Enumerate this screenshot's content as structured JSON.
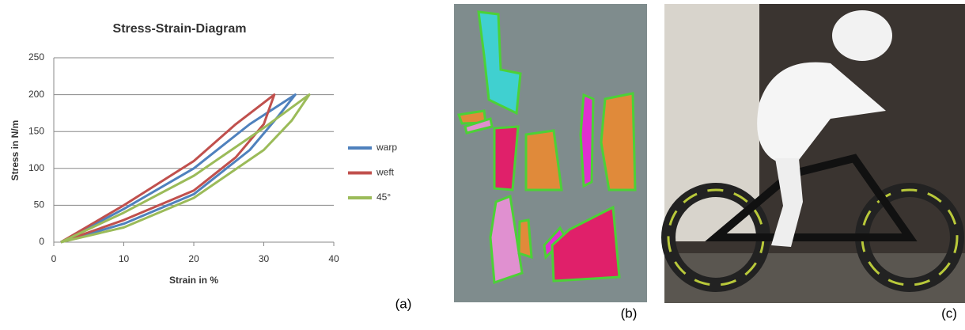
{
  "chart_data": {
    "type": "line",
    "title": "Stress-Strain-Diagram",
    "x_label": "Strain in %",
    "y_label": "Stress in N/m",
    "xlim": [
      0,
      40
    ],
    "xticks": [
      0,
      10,
      20,
      30,
      40
    ],
    "ylim": [
      0,
      250
    ],
    "yticks": [
      0,
      50,
      100,
      150,
      200,
      250
    ],
    "grid": true,
    "legend": "right",
    "series": [
      {
        "name": "warp",
        "color": "#4f81bd",
        "x": [
          1,
          10,
          20,
          28,
          34.5,
          32,
          28,
          20,
          10,
          1
        ],
        "values": [
          0,
          45,
          100,
          160,
          200,
          170,
          125,
          65,
          25,
          0
        ]
      },
      {
        "name": "weft",
        "color": "#c0504d",
        "x": [
          1,
          10,
          20,
          26,
          31.5,
          30,
          26,
          20,
          10,
          1
        ],
        "values": [
          0,
          50,
          110,
          160,
          200,
          160,
          115,
          70,
          30,
          0
        ]
      },
      {
        "name": "45°",
        "color": "#9bbb59",
        "x": [
          1,
          10,
          20,
          30,
          36.5,
          34,
          30,
          20,
          10,
          1
        ],
        "values": [
          0,
          40,
          90,
          155,
          200,
          165,
          125,
          60,
          20,
          0
        ]
      }
    ]
  },
  "panels": {
    "a": "(a)",
    "b": "(b)",
    "c": "(c)"
  }
}
